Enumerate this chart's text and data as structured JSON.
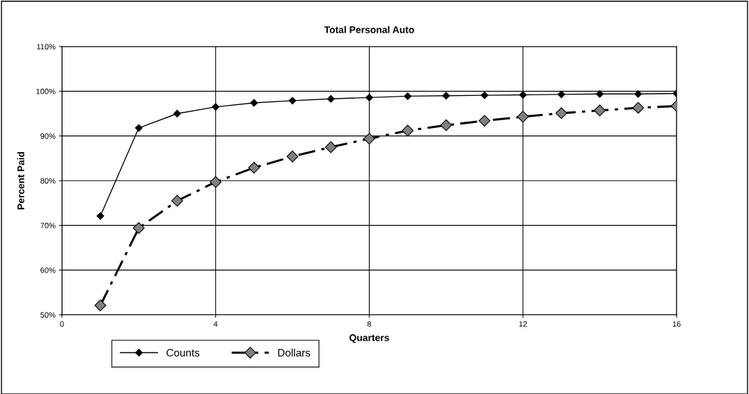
{
  "chart_data": {
    "type": "line",
    "title": "Total Personal Auto",
    "xlabel": "Quarters",
    "ylabel": "Percent Paid",
    "x": [
      1,
      2,
      3,
      4,
      5,
      6,
      7,
      8,
      9,
      10,
      11,
      12,
      13,
      14,
      15,
      16
    ],
    "series": [
      {
        "name": "Counts",
        "color": "#000000",
        "marker": "diamond",
        "line_style": "solid",
        "values": [
          72.1,
          91.8,
          95.0,
          96.5,
          97.4,
          97.9,
          98.3,
          98.6,
          98.9,
          99.0,
          99.1,
          99.2,
          99.3,
          99.4,
          99.4,
          99.5
        ]
      },
      {
        "name": "Dollars",
        "color": "#808080",
        "marker": "diamond",
        "line_style": "dashed",
        "values": [
          52.1,
          69.4,
          75.5,
          79.7,
          82.9,
          85.4,
          87.5,
          89.4,
          91.2,
          92.4,
          93.4,
          94.3,
          95.1,
          95.7,
          96.3,
          96.7
        ]
      }
    ],
    "xlim": [
      0,
      16
    ],
    "xticks": [
      0,
      4,
      8,
      12,
      16
    ],
    "ylim": [
      50,
      110
    ],
    "yticks": [
      {
        "value": 50,
        "label": "50%"
      },
      {
        "value": 60,
        "label": "60%"
      },
      {
        "value": 70,
        "label": "70%"
      },
      {
        "value": 80,
        "label": "80%"
      },
      {
        "value": 90,
        "label": "90%"
      },
      {
        "value": 100,
        "label": "100%"
      },
      {
        "value": 110,
        "label": "110%"
      }
    ],
    "grid": true,
    "legend": "bottom left"
  }
}
